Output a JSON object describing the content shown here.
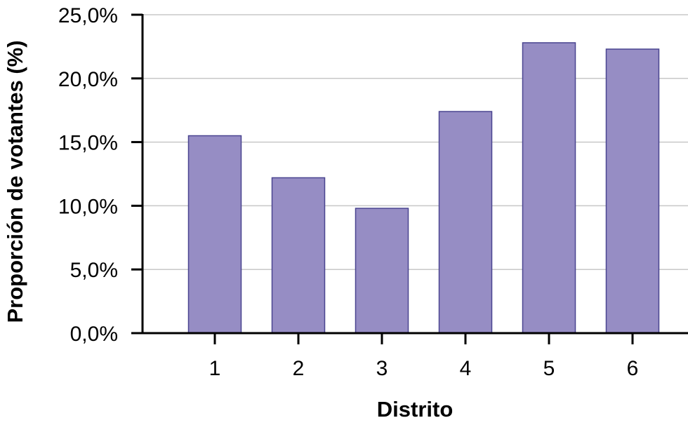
{
  "chart_data": {
    "type": "bar",
    "categories": [
      "1",
      "2",
      "3",
      "4",
      "5",
      "6"
    ],
    "values": [
      15.5,
      12.2,
      9.8,
      17.4,
      22.8,
      22.3
    ],
    "xlabel": "Distrito",
    "ylabel": "Proporción de votantes  (%)",
    "ylim": [
      0,
      25
    ],
    "yticks": [
      0,
      5,
      10,
      15,
      20,
      25
    ],
    "ytick_labels": [
      "0,0%",
      "5,0%",
      "10,0%",
      "15,0%",
      "20,0%",
      "25,0%"
    ],
    "grid": true,
    "legend": "none",
    "bar_color": "#968dc4",
    "bar_edge_color": "#4a4590",
    "grid_color": "#c8c8c8",
    "axis_color": "#000000"
  }
}
